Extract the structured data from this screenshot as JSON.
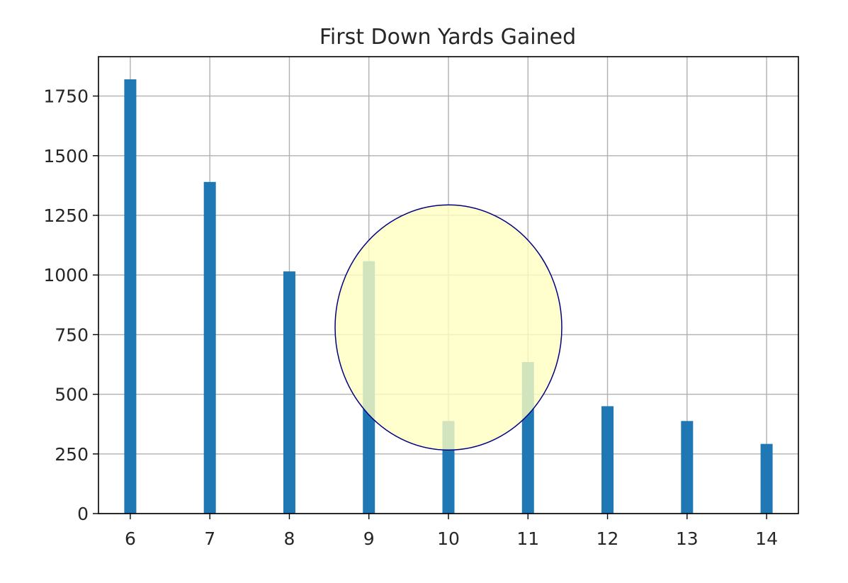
{
  "chart_data": {
    "type": "bar",
    "title": "First Down Yards Gained",
    "xlabel": "",
    "ylabel": "",
    "x": [
      6,
      7,
      8,
      9,
      10,
      11,
      12,
      13,
      14
    ],
    "values": [
      1820,
      1390,
      1015,
      1058,
      388,
      635,
      450,
      388,
      292
    ],
    "xticks": [
      "6",
      "7",
      "8",
      "9",
      "10",
      "11",
      "12",
      "13",
      "14"
    ],
    "yticks": [
      "0",
      "250",
      "500",
      "750",
      "1000",
      "1250",
      "1500",
      "1750"
    ],
    "ytick_values": [
      0,
      250,
      500,
      750,
      1000,
      1250,
      1500,
      1750
    ],
    "xlim": [
      5.6,
      14.4
    ],
    "ylim": [
      0,
      1915
    ],
    "grid": true,
    "bar_color": "#1f77b4",
    "annotation": {
      "shape": "circle",
      "center_x": 10.0,
      "center_y": 780,
      "fill": "#ffffc0",
      "stroke": "#000080"
    }
  }
}
